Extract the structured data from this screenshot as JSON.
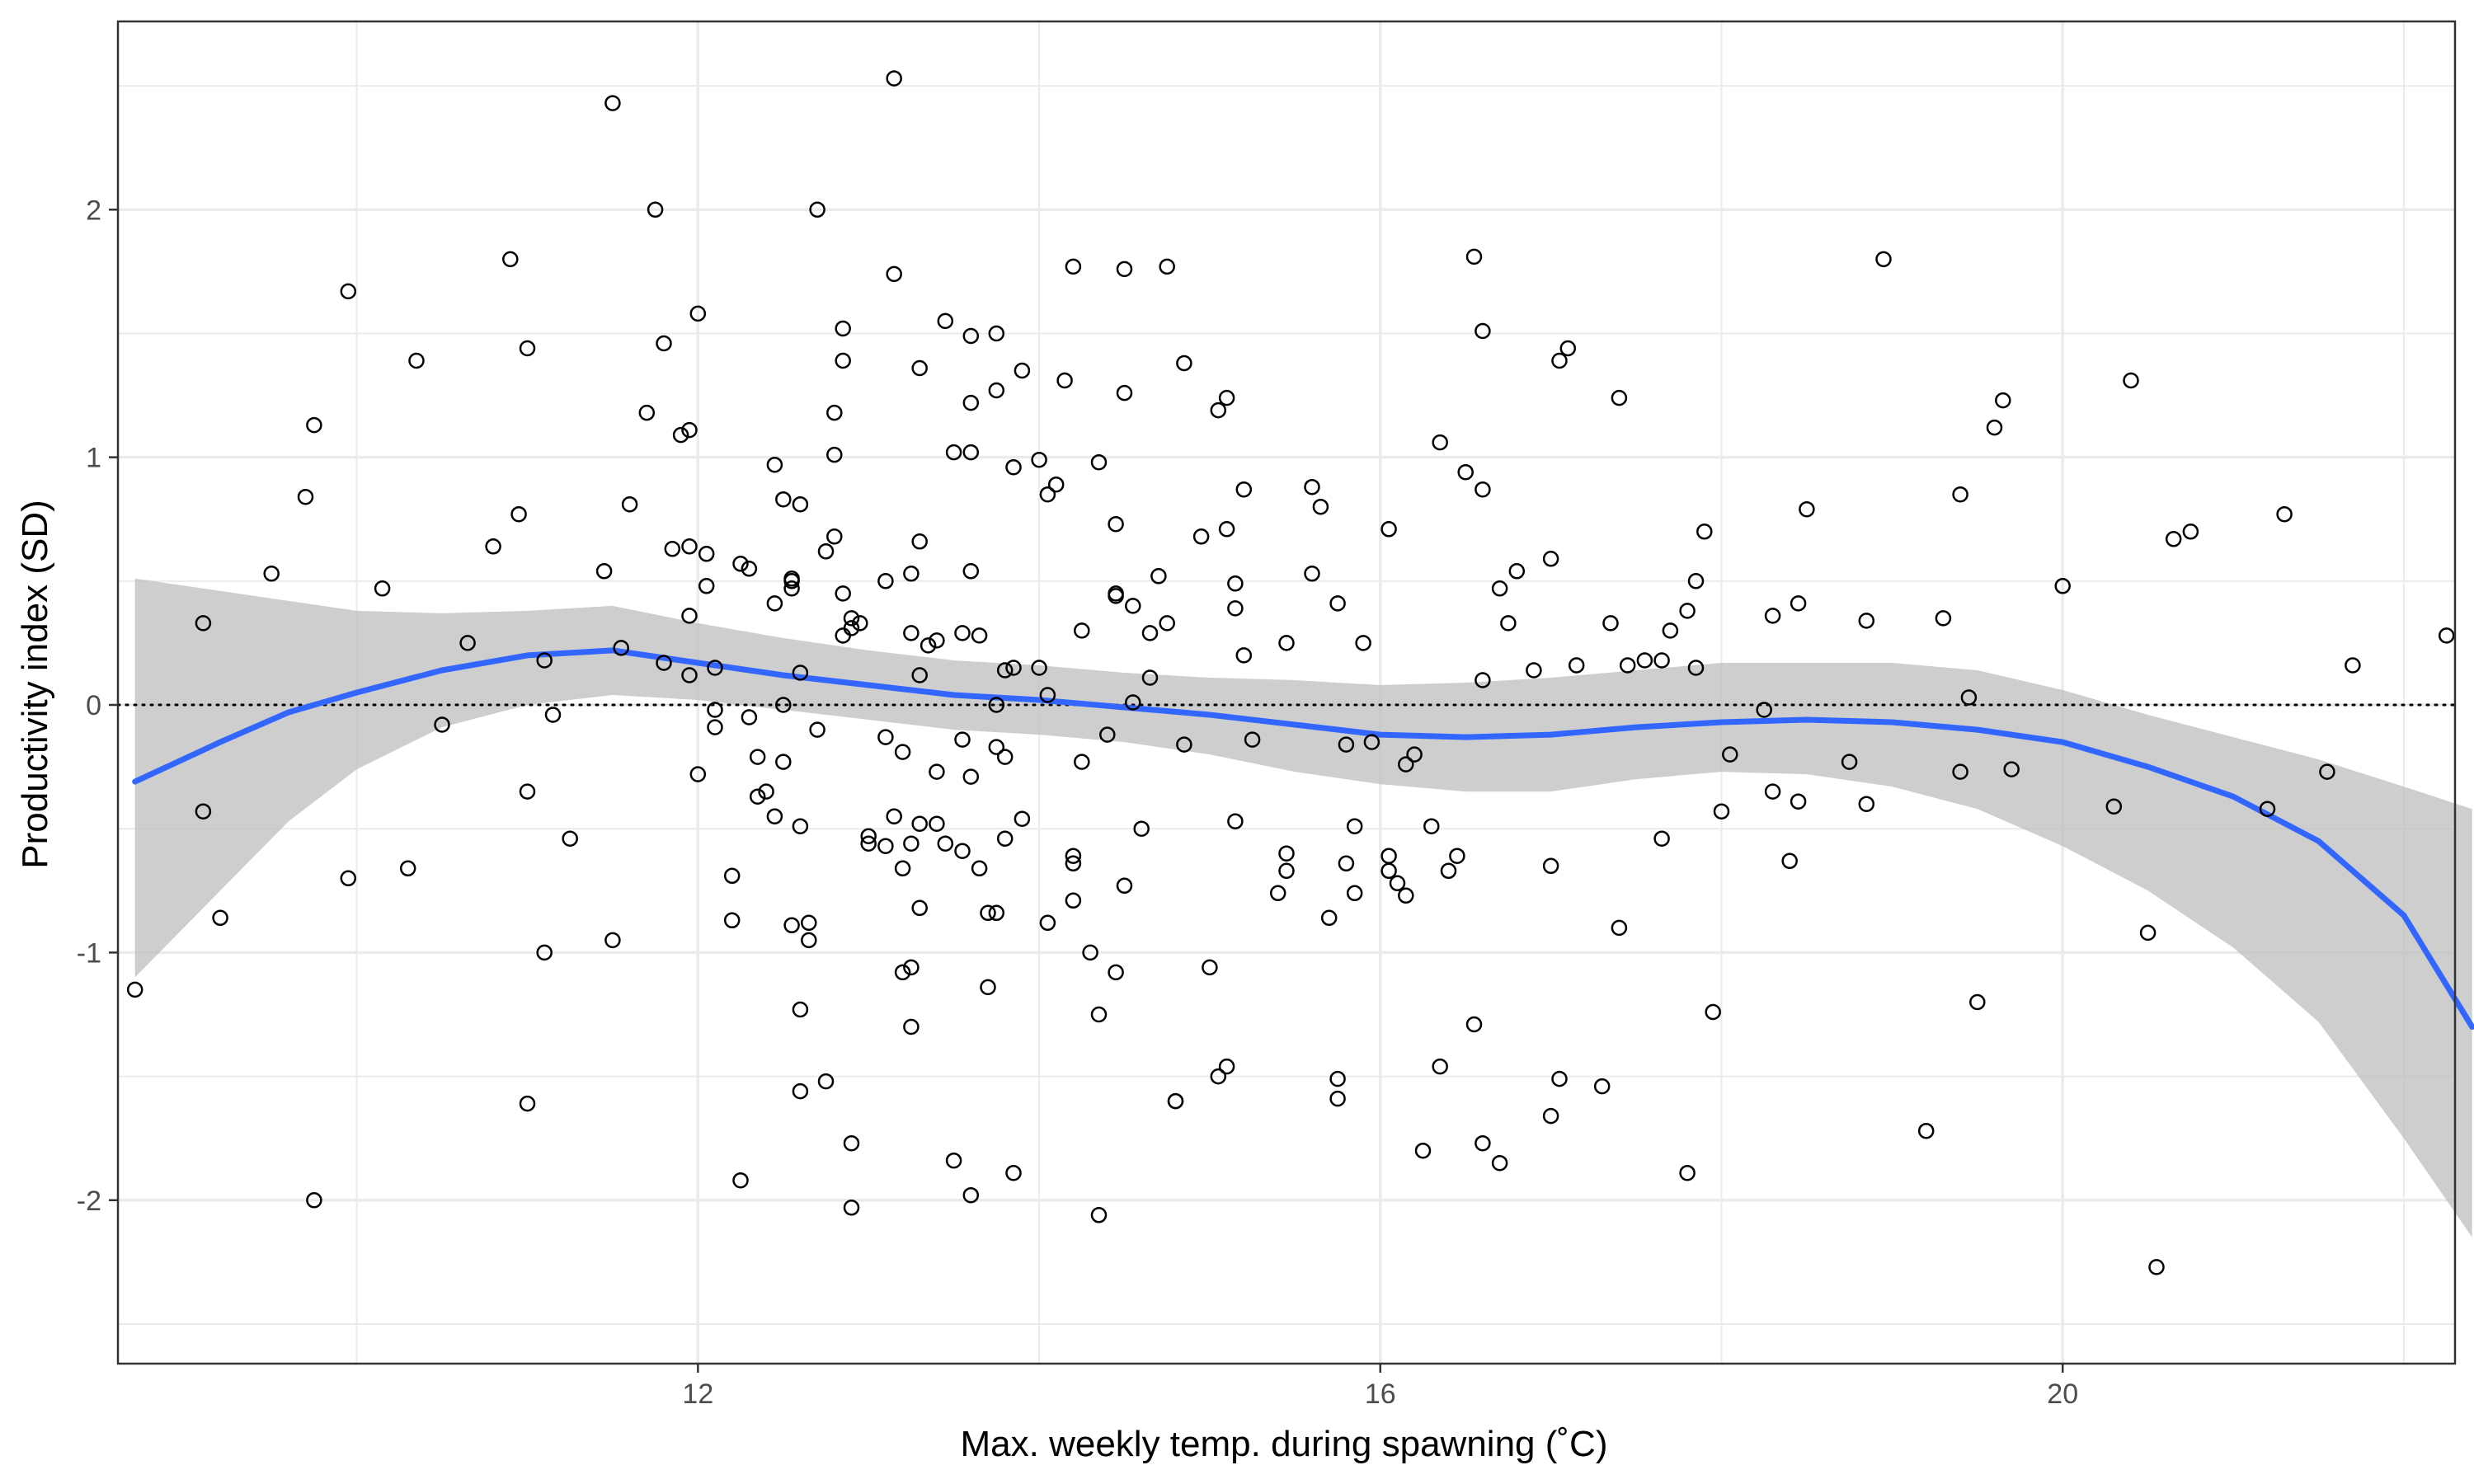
{
  "chart_data": {
    "type": "scatter",
    "title": "",
    "xlabel": "Max. weekly temp. during spawning (˚C)",
    "ylabel": "Productivity index (SD)",
    "xlim": [
      8.6,
      22.3
    ],
    "ylim": [
      -2.66,
      2.76
    ],
    "x_ticks": [
      12,
      16,
      20
    ],
    "x_tick_labels": [
      "12",
      "16",
      "20"
    ],
    "y_ticks": [
      -2,
      -1,
      0,
      1,
      2
    ],
    "y_tick_labels": [
      "-2",
      "-1",
      "0",
      "1",
      "2"
    ],
    "x_minor_gridlines": [
      10,
      14,
      18,
      22
    ],
    "y_minor_gridlines": [
      -2.5,
      -1.5,
      -0.5,
      0.5,
      1.5,
      2.5
    ],
    "grid": true,
    "reference_line": {
      "y": 0,
      "style": "dotted",
      "color": "#000000"
    },
    "colors": {
      "points": "#000000",
      "smooth": "#3366FF",
      "ribbon": "#BEBEBE",
      "grid": "#EBEBEB",
      "panel_border": "#333333"
    },
    "points": [
      [
        8.7,
        -1.15
      ],
      [
        9.1,
        0.33
      ],
      [
        9.1,
        -0.43
      ],
      [
        9.2,
        -0.86
      ],
      [
        9.5,
        0.53
      ],
      [
        9.7,
        0.84
      ],
      [
        9.75,
        1.13
      ],
      [
        9.75,
        -2.0
      ],
      [
        9.95,
        1.67
      ],
      [
        9.95,
        -0.7
      ],
      [
        10.15,
        0.47
      ],
      [
        10.3,
        -0.66
      ],
      [
        10.35,
        1.39
      ],
      [
        10.5,
        -0.08
      ],
      [
        10.65,
        0.25
      ],
      [
        10.8,
        0.64
      ],
      [
        10.9,
        1.8
      ],
      [
        10.95,
        0.77
      ],
      [
        11.0,
        1.44
      ],
      [
        11.0,
        -0.35
      ],
      [
        11.0,
        -1.61
      ],
      [
        11.1,
        0.18
      ],
      [
        11.1,
        -1.0
      ],
      [
        11.15,
        -0.04
      ],
      [
        11.25,
        -0.54
      ],
      [
        11.45,
        0.54
      ],
      [
        11.5,
        2.43
      ],
      [
        11.5,
        -0.95
      ],
      [
        11.55,
        0.23
      ],
      [
        11.6,
        0.81
      ],
      [
        11.7,
        1.18
      ],
      [
        11.75,
        2.0
      ],
      [
        11.8,
        1.46
      ],
      [
        11.8,
        0.17
      ],
      [
        11.85,
        0.63
      ],
      [
        11.9,
        1.09
      ],
      [
        11.95,
        1.11
      ],
      [
        11.95,
        0.64
      ],
      [
        11.95,
        0.36
      ],
      [
        11.95,
        0.12
      ],
      [
        12.0,
        1.58
      ],
      [
        12.0,
        -0.28
      ],
      [
        12.05,
        0.61
      ],
      [
        12.05,
        0.48
      ],
      [
        12.1,
        0.15
      ],
      [
        12.1,
        -0.02
      ],
      [
        12.1,
        -0.09
      ],
      [
        12.2,
        -0.69
      ],
      [
        12.2,
        -0.87
      ],
      [
        12.25,
        0.57
      ],
      [
        12.25,
        -1.92
      ],
      [
        12.3,
        0.55
      ],
      [
        12.3,
        -0.05
      ],
      [
        12.35,
        -0.21
      ],
      [
        12.35,
        -0.37
      ],
      [
        12.4,
        -0.35
      ],
      [
        12.45,
        0.97
      ],
      [
        12.45,
        0.41
      ],
      [
        12.45,
        -0.45
      ],
      [
        12.5,
        0.83
      ],
      [
        12.5,
        0.0
      ],
      [
        12.5,
        -0.23
      ],
      [
        12.55,
        0.5
      ],
      [
        12.55,
        0.51
      ],
      [
        12.55,
        0.47
      ],
      [
        12.55,
        -0.89
      ],
      [
        12.6,
        0.81
      ],
      [
        12.6,
        0.13
      ],
      [
        12.6,
        -0.49
      ],
      [
        12.6,
        -1.23
      ],
      [
        12.6,
        -1.56
      ],
      [
        12.65,
        -0.88
      ],
      [
        12.65,
        -0.95
      ],
      [
        12.7,
        -0.1
      ],
      [
        12.7,
        2.0
      ],
      [
        12.75,
        0.62
      ],
      [
        12.75,
        -1.52
      ],
      [
        12.8,
        1.18
      ],
      [
        12.8,
        1.01
      ],
      [
        12.8,
        0.68
      ],
      [
        12.85,
        1.52
      ],
      [
        12.85,
        1.39
      ],
      [
        12.85,
        0.45
      ],
      [
        12.85,
        0.28
      ],
      [
        12.9,
        0.35
      ],
      [
        12.9,
        0.31
      ],
      [
        12.9,
        -1.77
      ],
      [
        12.9,
        -2.03
      ],
      [
        12.95,
        0.33
      ],
      [
        13.0,
        -0.53
      ],
      [
        13.0,
        -0.56
      ],
      [
        13.1,
        0.5
      ],
      [
        13.1,
        -0.13
      ],
      [
        13.1,
        -0.57
      ],
      [
        13.15,
        2.53
      ],
      [
        13.15,
        1.74
      ],
      [
        13.15,
        -0.45
      ],
      [
        13.2,
        -0.19
      ],
      [
        13.2,
        -0.66
      ],
      [
        13.2,
        -1.08
      ],
      [
        13.25,
        0.53
      ],
      [
        13.25,
        0.29
      ],
      [
        13.25,
        -0.56
      ],
      [
        13.25,
        -1.06
      ],
      [
        13.25,
        -1.3
      ],
      [
        13.3,
        1.36
      ],
      [
        13.3,
        0.66
      ],
      [
        13.3,
        0.12
      ],
      [
        13.3,
        -0.48
      ],
      [
        13.3,
        -0.82
      ],
      [
        13.35,
        0.24
      ],
      [
        13.4,
        0.26
      ],
      [
        13.4,
        -0.27
      ],
      [
        13.4,
        -0.48
      ],
      [
        13.45,
        1.55
      ],
      [
        13.45,
        -0.56
      ],
      [
        13.5,
        1.02
      ],
      [
        13.5,
        -1.84
      ],
      [
        13.55,
        0.29
      ],
      [
        13.55,
        -0.14
      ],
      [
        13.55,
        -0.59
      ],
      [
        13.6,
        1.02
      ],
      [
        13.6,
        0.54
      ],
      [
        13.6,
        1.22
      ],
      [
        13.6,
        1.49
      ],
      [
        13.6,
        -0.29
      ],
      [
        13.6,
        -1.98
      ],
      [
        13.65,
        0.28
      ],
      [
        13.65,
        -0.66
      ],
      [
        13.7,
        -0.84
      ],
      [
        13.7,
        -1.14
      ],
      [
        13.75,
        0.0
      ],
      [
        13.75,
        -0.17
      ],
      [
        13.75,
        -0.84
      ],
      [
        13.75,
        1.27
      ],
      [
        13.75,
        1.5
      ],
      [
        13.8,
        0.14
      ],
      [
        13.8,
        -0.54
      ],
      [
        13.8,
        -0.21
      ],
      [
        13.85,
        0.96
      ],
      [
        13.85,
        0.15
      ],
      [
        13.85,
        -1.89
      ],
      [
        13.9,
        1.35
      ],
      [
        13.9,
        -0.46
      ],
      [
        14.0,
        0.15
      ],
      [
        14.0,
        0.99
      ],
      [
        14.05,
        0.85
      ],
      [
        14.05,
        0.04
      ],
      [
        14.05,
        -0.88
      ],
      [
        14.1,
        0.89
      ],
      [
        14.15,
        1.31
      ],
      [
        14.2,
        1.77
      ],
      [
        14.2,
        -0.61
      ],
      [
        14.2,
        -0.64
      ],
      [
        14.2,
        -0.79
      ],
      [
        14.25,
        0.3
      ],
      [
        14.25,
        -0.23
      ],
      [
        14.3,
        -1.0
      ],
      [
        14.35,
        -1.25
      ],
      [
        14.35,
        -2.06
      ],
      [
        14.35,
        0.98
      ],
      [
        14.4,
        -0.12
      ],
      [
        14.45,
        0.73
      ],
      [
        14.45,
        0.45
      ],
      [
        14.45,
        0.44
      ],
      [
        14.45,
        -1.08
      ],
      [
        14.5,
        1.76
      ],
      [
        14.5,
        1.26
      ],
      [
        14.5,
        -0.73
      ],
      [
        14.55,
        0.4
      ],
      [
        14.55,
        0.01
      ],
      [
        14.6,
        -0.5
      ],
      [
        14.65,
        0.29
      ],
      [
        14.65,
        0.11
      ],
      [
        14.7,
        0.52
      ],
      [
        14.75,
        1.77
      ],
      [
        14.75,
        0.33
      ],
      [
        14.8,
        -1.6
      ],
      [
        14.8,
        -1.6
      ],
      [
        14.85,
        -0.16
      ],
      [
        14.85,
        1.38
      ],
      [
        14.95,
        0.68
      ],
      [
        15.0,
        -1.06
      ],
      [
        15.05,
        1.19
      ],
      [
        15.05,
        -1.5
      ],
      [
        15.1,
        1.24
      ],
      [
        15.1,
        0.71
      ],
      [
        15.1,
        -1.46
      ],
      [
        15.15,
        0.49
      ],
      [
        15.15,
        0.39
      ],
      [
        15.15,
        -0.47
      ],
      [
        15.2,
        0.2
      ],
      [
        15.2,
        0.87
      ],
      [
        15.25,
        -0.14
      ],
      [
        15.4,
        -0.76
      ],
      [
        15.45,
        -0.6
      ],
      [
        15.45,
        -0.67
      ],
      [
        15.45,
        0.25
      ],
      [
        15.6,
        0.53
      ],
      [
        15.6,
        0.88
      ],
      [
        15.65,
        0.8
      ],
      [
        15.7,
        -0.86
      ],
      [
        15.75,
        -1.59
      ],
      [
        15.75,
        -1.51
      ],
      [
        15.75,
        0.41
      ],
      [
        15.8,
        -0.64
      ],
      [
        15.8,
        -0.16
      ],
      [
        15.85,
        -0.49
      ],
      [
        15.85,
        -0.76
      ],
      [
        15.9,
        0.25
      ],
      [
        15.95,
        -0.15
      ],
      [
        16.05,
        -0.61
      ],
      [
        16.05,
        -0.67
      ],
      [
        16.05,
        0.71
      ],
      [
        16.1,
        -0.72
      ],
      [
        16.15,
        -0.24
      ],
      [
        16.15,
        -0.77
      ],
      [
        16.2,
        -0.2
      ],
      [
        16.25,
        -1.8
      ],
      [
        16.3,
        -0.49
      ],
      [
        16.35,
        -1.46
      ],
      [
        16.35,
        1.06
      ],
      [
        16.4,
        -0.67
      ],
      [
        16.45,
        -0.61
      ],
      [
        16.5,
        0.94
      ],
      [
        16.55,
        1.81
      ],
      [
        16.55,
        -1.29
      ],
      [
        16.6,
        1.51
      ],
      [
        16.6,
        0.87
      ],
      [
        16.6,
        0.1
      ],
      [
        16.6,
        -1.77
      ],
      [
        16.7,
        0.47
      ],
      [
        16.7,
        -1.85
      ],
      [
        16.75,
        0.33
      ],
      [
        16.8,
        0.54
      ],
      [
        16.9,
        0.14
      ],
      [
        17.0,
        0.59
      ],
      [
        17.0,
        -1.66
      ],
      [
        17.0,
        -0.65
      ],
      [
        17.05,
        1.39
      ],
      [
        17.05,
        -1.51
      ],
      [
        17.1,
        1.44
      ],
      [
        17.15,
        0.16
      ],
      [
        17.3,
        -1.54
      ],
      [
        17.35,
        0.33
      ],
      [
        17.4,
        -0.9
      ],
      [
        17.4,
        1.24
      ],
      [
        17.45,
        0.16
      ],
      [
        17.55,
        0.18
      ],
      [
        17.65,
        0.18
      ],
      [
        17.65,
        -0.54
      ],
      [
        17.7,
        0.3
      ],
      [
        17.8,
        0.38
      ],
      [
        17.8,
        -1.89
      ],
      [
        17.85,
        0.5
      ],
      [
        17.85,
        0.15
      ],
      [
        17.9,
        0.7
      ],
      [
        17.95,
        -1.24
      ],
      [
        18.0,
        -0.43
      ],
      [
        18.05,
        -0.2
      ],
      [
        18.25,
        -0.02
      ],
      [
        18.3,
        0.36
      ],
      [
        18.3,
        -0.35
      ],
      [
        18.4,
        -0.63
      ],
      [
        18.45,
        0.41
      ],
      [
        18.45,
        -0.39
      ],
      [
        18.5,
        0.79
      ],
      [
        18.75,
        -0.23
      ],
      [
        18.85,
        0.34
      ],
      [
        18.85,
        -0.4
      ],
      [
        18.95,
        1.8
      ],
      [
        19.2,
        -1.72
      ],
      [
        19.3,
        0.35
      ],
      [
        19.4,
        0.85
      ],
      [
        19.4,
        -0.27
      ],
      [
        19.45,
        0.03
      ],
      [
        19.5,
        -1.2
      ],
      [
        19.6,
        1.12
      ],
      [
        19.65,
        1.23
      ],
      [
        19.7,
        -0.26
      ],
      [
        20.0,
        0.48
      ],
      [
        20.3,
        -0.41
      ],
      [
        20.4,
        1.31
      ],
      [
        20.5,
        -0.92
      ],
      [
        20.55,
        -2.27
      ],
      [
        20.65,
        0.67
      ],
      [
        20.75,
        0.7
      ],
      [
        21.2,
        -0.42
      ],
      [
        21.3,
        0.77
      ],
      [
        21.55,
        -0.27
      ],
      [
        21.7,
        0.16
      ],
      [
        22.25,
        0.28
      ]
    ],
    "smooth_line": {
      "x": [
        8.7,
        9.2,
        9.6,
        10.0,
        10.5,
        11.0,
        11.5,
        12.0,
        12.5,
        13.0,
        13.5,
        14.0,
        14.5,
        15.0,
        15.5,
        16.0,
        16.5,
        17.0,
        17.5,
        18.0,
        18.5,
        19.0,
        19.5,
        20.0,
        20.5,
        21.0,
        21.5,
        22.0,
        22.4
      ],
      "y": [
        -0.31,
        -0.15,
        -0.03,
        0.05,
        0.14,
        0.2,
        0.22,
        0.17,
        0.12,
        0.08,
        0.04,
        0.02,
        -0.01,
        -0.04,
        -0.08,
        -0.12,
        -0.13,
        -0.12,
        -0.09,
        -0.07,
        -0.06,
        -0.07,
        -0.1,
        -0.15,
        -0.25,
        -0.37,
        -0.55,
        -0.85,
        -1.3
      ],
      "lower": [
        -1.1,
        -0.75,
        -0.47,
        -0.26,
        -0.09,
        0.0,
        0.04,
        0.02,
        -0.02,
        -0.06,
        -0.1,
        -0.12,
        -0.15,
        -0.2,
        -0.27,
        -0.32,
        -0.35,
        -0.35,
        -0.3,
        -0.27,
        -0.28,
        -0.33,
        -0.42,
        -0.57,
        -0.75,
        -0.98,
        -1.28,
        -1.75,
        -2.15
      ],
      "upper": [
        0.51,
        0.46,
        0.42,
        0.38,
        0.37,
        0.38,
        0.4,
        0.33,
        0.27,
        0.22,
        0.18,
        0.16,
        0.13,
        0.11,
        0.1,
        0.08,
        0.09,
        0.11,
        0.14,
        0.17,
        0.17,
        0.17,
        0.14,
        0.06,
        -0.04,
        -0.13,
        -0.22,
        -0.33,
        -0.42
      ]
    }
  }
}
